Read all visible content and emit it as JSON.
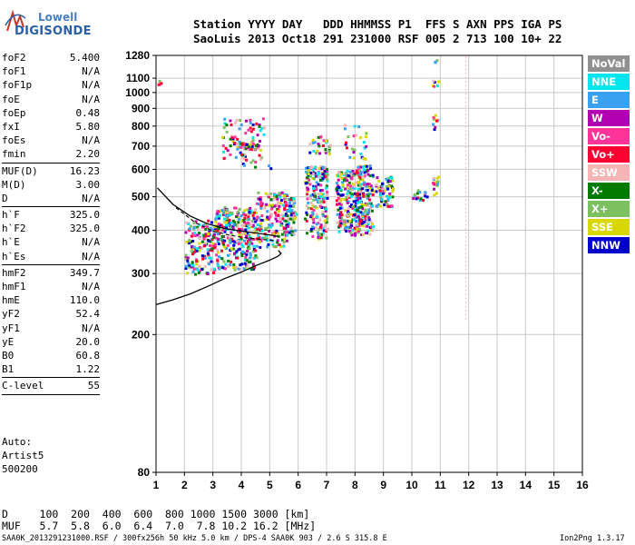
{
  "logo": {
    "line1": "Lowell",
    "line2": "DIGISONDE"
  },
  "header": {
    "line1": "Station YYYY DAY   DDD HHMMSS P1  FFS S AXN PPS IGA PS",
    "line2": "SaoLuis 2013 Oct18 291 231000 RSF 005 2 713 100 10+ 22"
  },
  "params_group1": [
    {
      "k": "foF2",
      "v": "5.400"
    },
    {
      "k": "foF1",
      "v": "N/A"
    },
    {
      "k": "foF1p",
      "v": "N/A"
    },
    {
      "k": "foE",
      "v": "N/A"
    },
    {
      "k": "foEp",
      "v": "0.48"
    },
    {
      "k": "fxI",
      "v": "5.80"
    },
    {
      "k": "foEs",
      "v": "N/A"
    },
    {
      "k": "fmin",
      "v": "2.20"
    }
  ],
  "params_group2": [
    {
      "k": "MUF(D)",
      "v": "16.23"
    },
    {
      "k": "M(D)",
      "v": "3.00"
    },
    {
      "k": "D",
      "v": "N/A"
    }
  ],
  "params_group3": [
    {
      "k": "h`F",
      "v": "325.0"
    },
    {
      "k": "h`F2",
      "v": "325.0"
    },
    {
      "k": "h`E",
      "v": "N/A"
    },
    {
      "k": "h`Es",
      "v": "N/A"
    }
  ],
  "params_group4": [
    {
      "k": "hmF2",
      "v": "349.7"
    },
    {
      "k": "hmF1",
      "v": "N/A"
    },
    {
      "k": "hmE",
      "v": "110.0"
    },
    {
      "k": "yF2",
      "v": "52.4"
    },
    {
      "k": "yF1",
      "v": "N/A"
    },
    {
      "k": "yE",
      "v": "20.0"
    },
    {
      "k": "B0",
      "v": "60.8"
    },
    {
      "k": "B1",
      "v": "1.22"
    }
  ],
  "params_group5": [
    {
      "k": "C-level",
      "v": "55"
    }
  ],
  "auto": {
    "l1": "Auto:",
    "l2": "Artist5",
    "l3": "500200"
  },
  "legend": [
    {
      "label": "NoVal",
      "color": "#909090"
    },
    {
      "label": "NNE",
      "color": "#00e5ee"
    },
    {
      "label": "E",
      "color": "#3aa0f0"
    },
    {
      "label": "W",
      "color": "#b000b0"
    },
    {
      "label": "Vo-",
      "color": "#ff3399"
    },
    {
      "label": "Vo+",
      "color": "#ff0033"
    },
    {
      "label": "SSW",
      "color": "#f5b5b5"
    },
    {
      "label": "X-",
      "color": "#007a00"
    },
    {
      "label": "X+",
      "color": "#7cc060"
    },
    {
      "label": "SSE",
      "color": "#d8d800"
    },
    {
      "label": "NNW",
      "color": "#0000cc"
    }
  ],
  "bottom_rows": {
    "d_row": "D     100  200  400  600  800 1000 1500 3000 [km]",
    "muf_row": "MUF   5.7  5.8  6.0  6.4  7.0  7.8 10.2 16.2 [MHz]"
  },
  "footer": {
    "left": "SAA0K_2013291231000.RSF / 300fx256h 50 kHz 5.0 km / DPS-4 SAA0K 903 / 2.6 S 315.8 E",
    "right": "Ion2Png 1.3.17"
  },
  "chart_data": {
    "type": "scatter",
    "xlim": [
      1,
      16
    ],
    "ylim": [
      80,
      1280
    ],
    "x_ticks": [
      1,
      2,
      3,
      4,
      5,
      6,
      7,
      8,
      9,
      10,
      11,
      12,
      13,
      14,
      15,
      16
    ],
    "y_ticks": [
      80,
      200,
      300,
      400,
      500,
      600,
      700,
      800,
      900,
      1000,
      1100,
      1280
    ],
    "grid": true,
    "yscale": "log",
    "scaled_profile": [
      [
        1.0,
        244
      ],
      [
        1.6,
        252
      ],
      [
        2.2,
        262
      ],
      [
        2.8,
        275
      ],
      [
        3.4,
        290
      ],
      [
        4.0,
        303
      ],
      [
        4.5,
        316
      ],
      [
        5.0,
        328
      ],
      [
        5.3,
        337
      ],
      [
        5.4,
        343
      ],
      [
        5.3,
        350
      ]
    ],
    "trace": [
      [
        1.05,
        530
      ],
      [
        1.6,
        475
      ],
      [
        2.2,
        440
      ],
      [
        2.8,
        418
      ],
      [
        3.4,
        405
      ],
      [
        4.0,
        398
      ],
      [
        4.5,
        393
      ],
      [
        5.0,
        388
      ],
      [
        5.3,
        384
      ]
    ],
    "dashed_trace": [
      [
        1.7,
        465
      ],
      [
        2.4,
        420
      ],
      [
        3.0,
        398
      ],
      [
        3.6,
        387
      ],
      [
        4.2,
        380
      ],
      [
        4.8,
        376
      ],
      [
        5.2,
        374
      ]
    ],
    "vertical_markers": [
      {
        "x": 11.9,
        "y_from": 220,
        "y_to": 1270,
        "color": "#f5b5b5"
      }
    ],
    "echo_clusters": [
      {
        "x": [
          2.0,
          3.0
        ],
        "y": [
          300,
          430
        ],
        "n": 160
      },
      {
        "x": [
          3.0,
          4.5
        ],
        "y": [
          310,
          470
        ],
        "n": 330
      },
      {
        "x": [
          4.5,
          5.6
        ],
        "y": [
          360,
          520
        ],
        "n": 170
      },
      {
        "x": [
          5.5,
          5.9
        ],
        "y": [
          390,
          500
        ],
        "n": 60
      },
      {
        "x": [
          6.2,
          7.0
        ],
        "y": [
          380,
          620
        ],
        "n": 210
      },
      {
        "x": [
          7.3,
          8.2
        ],
        "y": [
          390,
          600
        ],
        "n": 220
      },
      {
        "x": [
          8.0,
          8.6
        ],
        "y": [
          390,
          620
        ],
        "n": 150
      },
      {
        "x": [
          8.7,
          9.3
        ],
        "y": [
          470,
          580
        ],
        "n": 70
      },
      {
        "x": [
          10.0,
          10.5
        ],
        "y": [
          490,
          530
        ],
        "n": 18
      },
      {
        "x": [
          10.7,
          10.9
        ],
        "y": [
          500,
          580
        ],
        "n": 14
      },
      {
        "x": [
          3.3,
          4.8
        ],
        "y": [
          650,
          850
        ],
        "n": 70
      },
      {
        "x": [
          3.8,
          4.6
        ],
        "y": [
          690,
          720
        ],
        "n": 40
      },
      {
        "x": [
          6.3,
          7.1
        ],
        "y": [
          670,
          760
        ],
        "n": 30
      },
      {
        "x": [
          7.6,
          8.4
        ],
        "y": [
          640,
          820
        ],
        "n": 26
      },
      {
        "x": [
          4.0,
          5.0
        ],
        "y": [
          600,
          660
        ],
        "n": 12
      },
      {
        "x": [
          10.7,
          10.9
        ],
        "y": [
          780,
          870
        ],
        "n": 10
      },
      {
        "x": [
          10.7,
          10.9
        ],
        "y": [
          1040,
          1090
        ],
        "n": 6
      },
      {
        "x": [
          10.75,
          10.85
        ],
        "y": [
          1220,
          1250
        ],
        "n": 4
      },
      {
        "x": [
          1.05,
          1.15
        ],
        "y": [
          1040,
          1130
        ],
        "n": 5
      }
    ]
  }
}
